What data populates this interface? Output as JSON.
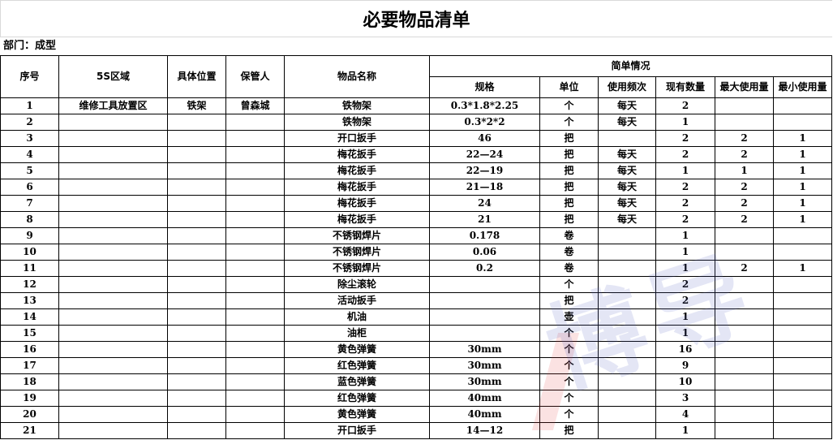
{
  "title": "必要物品清单",
  "department": "部门：成型",
  "headers": {
    "no": "序号",
    "area": "5S区域",
    "location": "具体位置",
    "keeper": "保管人",
    "name": "物品名称",
    "summary": "简单情况",
    "spec": "规格",
    "unit": "单位",
    "frequency": "使用频次",
    "current_qty": "现有数量",
    "max_qty": "最大使用量",
    "min_qty": "最小使用量"
  },
  "rows": [
    [
      "1",
      "维修工具放置区",
      "铁架",
      "曾森城",
      "铁物架",
      "0.3*1.8*2.25",
      "个",
      "每天",
      "2",
      "",
      ""
    ],
    [
      "2",
      "",
      "",
      "",
      "铁物架",
      "0.3*2*2",
      "个",
      "每天",
      "1",
      "",
      ""
    ],
    [
      "3",
      "",
      "",
      "",
      "开口扳手",
      "46",
      "把",
      "",
      "2",
      "2",
      "1"
    ],
    [
      "4",
      "",
      "",
      "",
      "梅花扳手",
      "22—24",
      "把",
      "每天",
      "2",
      "2",
      "1"
    ],
    [
      "5",
      "",
      "",
      "",
      "梅花扳手",
      "22—19",
      "把",
      "每天",
      "1",
      "1",
      "1"
    ],
    [
      "6",
      "",
      "",
      "",
      "梅花扳手",
      "21—18",
      "把",
      "每天",
      "2",
      "2",
      "1"
    ],
    [
      "7",
      "",
      "",
      "",
      "梅花扳手",
      "24",
      "把",
      "每天",
      "2",
      "2",
      "1"
    ],
    [
      "8",
      "",
      "",
      "",
      "梅花扳手",
      "21",
      "把",
      "每天",
      "2",
      "2",
      "1"
    ],
    [
      "9",
      "",
      "",
      "",
      "不锈钢焊片",
      "0.178",
      "卷",
      "",
      "1",
      "",
      ""
    ],
    [
      "10",
      "",
      "",
      "",
      "不锈钢焊片",
      "0.06",
      "卷",
      "",
      "1",
      "",
      ""
    ],
    [
      "11",
      "",
      "",
      "",
      "不锈钢焊片",
      "0.2",
      "卷",
      "",
      "1",
      "2",
      "1"
    ],
    [
      "12",
      "",
      "",
      "",
      "除尘滚轮",
      "",
      "个",
      "",
      "2",
      "",
      ""
    ],
    [
      "13",
      "",
      "",
      "",
      "活动扳手",
      "",
      "把",
      "",
      "2",
      "",
      ""
    ],
    [
      "14",
      "",
      "",
      "",
      "机油",
      "",
      "壶",
      "",
      "1",
      "",
      ""
    ],
    [
      "15",
      "",
      "",
      "",
      "油柜",
      "",
      "个",
      "",
      "1",
      "",
      ""
    ],
    [
      "16",
      "",
      "",
      "",
      "黄色弹簧",
      "30mm",
      "个",
      "",
      "16",
      "",
      ""
    ],
    [
      "17",
      "",
      "",
      "",
      "红色弹簧",
      "30mm",
      "个",
      "",
      "9",
      "",
      ""
    ],
    [
      "18",
      "",
      "",
      "",
      "蓝色弹簧",
      "30mm",
      "个",
      "",
      "10",
      "",
      ""
    ],
    [
      "19",
      "",
      "",
      "",
      "红色弹簧",
      "40mm",
      "个",
      "",
      "3",
      "",
      ""
    ],
    [
      "20",
      "",
      "",
      "",
      "黄色弹簧",
      "40mm",
      "个",
      "",
      "4",
      "",
      ""
    ],
    [
      "21",
      "",
      "",
      "",
      "开口扳手",
      "14—12",
      "把",
      "",
      "1",
      "",
      ""
    ]
  ],
  "watermark": {
    "text": "博导",
    "colors": [
      "#e63c3c",
      "#5a64be"
    ]
  }
}
